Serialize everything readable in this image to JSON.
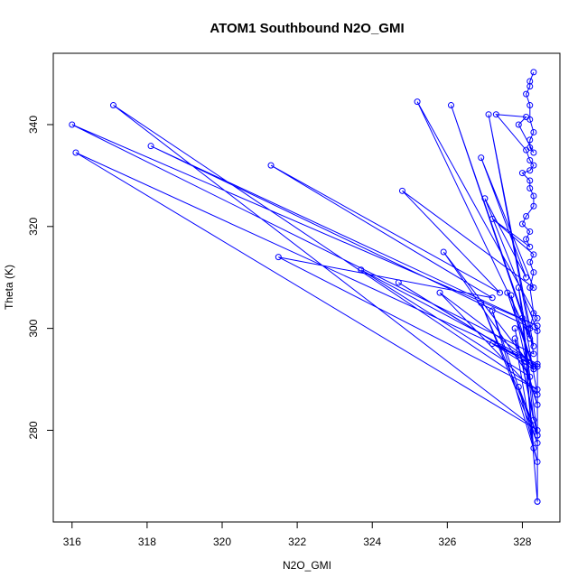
{
  "chart_data": {
    "type": "line",
    "title": "ATOM1 Southbound N2O_GMI",
    "xlabel": "N2O_GMI",
    "ylabel": "Theta (K)",
    "xlim": [
      315.5,
      329.0
    ],
    "ylim": [
      262.0,
      354.0
    ],
    "x_ticks": [
      316,
      318,
      320,
      322,
      324,
      326,
      328
    ],
    "y_ticks": [
      280,
      300,
      320,
      340
    ],
    "grid": false,
    "markers": "open-circle",
    "color": "#0000ff",
    "series": [
      {
        "x": [
          328.3,
          328.2,
          328.2,
          328.1,
          328.2,
          328.2,
          328.3,
          328.2,
          328.2,
          328.3,
          327.9,
          328.1,
          327.3,
          328.1,
          328.2,
          328.3,
          328.2,
          328.0,
          328.2,
          328.2,
          328.3,
          328.3,
          328.1,
          328.0,
          328.2,
          328.1,
          328.2,
          327.2,
          328.3,
          328.2,
          328.3,
          328.2,
          328.3,
          328.2,
          328.4,
          325.2,
          328.2,
          326.1,
          328.3,
          327.1,
          328.3,
          316.0,
          328.4,
          318.1,
          328.4,
          327.0,
          328.1,
          326.9,
          328.3,
          324.8,
          327.4,
          321.3,
          327.2,
          321.5,
          328.4,
          317.1,
          328.4,
          316.1,
          328.4,
          323.7,
          328.2,
          325.9,
          328.3,
          327.6,
          328.3,
          324.7,
          328.1,
          327.7,
          328.3,
          327.2,
          328.4,
          325.8,
          328.4,
          327.9,
          328.4,
          326.9,
          328.4,
          327.2,
          328.4,
          327.9,
          328.4,
          327.8,
          328.3,
          328.0,
          328.3,
          327.8,
          328.4,
          328.1,
          328.4,
          328.4,
          328.4
        ],
        "y": [
          350.3,
          348.5,
          347.5,
          346.0,
          343.8,
          341.0,
          338.5,
          337.0,
          335.5,
          334.5,
          340.0,
          341.5,
          342.0,
          335.0,
          333.0,
          332.0,
          331.0,
          330.5,
          329.0,
          327.5,
          326.0,
          324.0,
          322.0,
          320.5,
          319.0,
          317.5,
          316.0,
          321.5,
          314.5,
          313.0,
          311.0,
          308.0,
          303.0,
          300.0,
          302.0,
          344.5,
          298.0,
          343.8,
          296.5,
          342.0,
          295.0,
          340.0,
          300.5,
          335.8,
          299.5,
          325.5,
          310.0,
          333.5,
          308.0,
          327.0,
          307.0,
          332.0,
          306.0,
          314.0,
          288.0,
          343.8,
          280.0,
          334.5,
          293.0,
          311.5,
          290.5,
          315.0,
          292.0,
          307.0,
          292.5,
          309.0,
          293.5,
          306.5,
          292.0,
          297.0,
          292.5,
          307.0,
          287.0,
          308.0,
          279.0,
          305.0,
          277.5,
          303.5,
          273.8,
          288.5,
          279.0,
          300.0,
          282.0,
          302.0,
          276.5,
          298.0,
          285.0,
          292.5,
          266.0,
          300.5,
          266.0
        ]
      }
    ]
  }
}
